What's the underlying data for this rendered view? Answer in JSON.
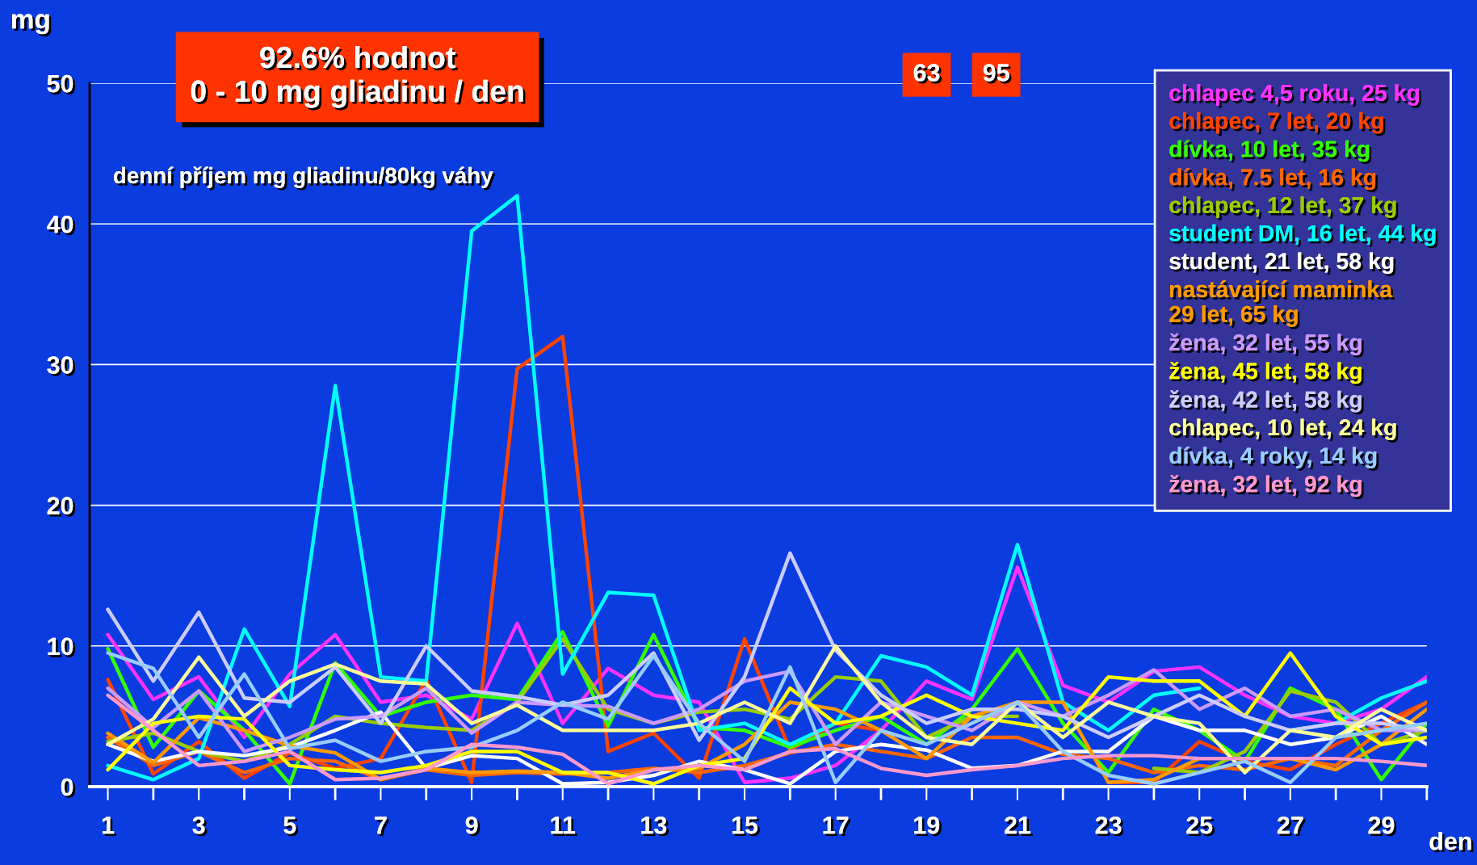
{
  "chart_data": {
    "type": "line",
    "title": "92.6% hodnot\n0 - 10 mg gliadinu / den",
    "subtitle": "denní příjem mg gliadinu/80kg váhy",
    "xlabel": "den",
    "ylabel": "mg",
    "x": [
      1,
      2,
      3,
      4,
      5,
      6,
      7,
      8,
      9,
      10,
      11,
      12,
      13,
      14,
      15,
      16,
      17,
      18,
      19,
      20,
      21,
      22,
      23,
      24,
      25,
      26,
      27,
      28,
      29,
      30
    ],
    "xlim": [
      0.6,
      30
    ],
    "ylim": [
      0,
      50
    ],
    "xticks": [
      1,
      3,
      5,
      7,
      9,
      11,
      13,
      15,
      17,
      19,
      21,
      23,
      25,
      27,
      29
    ],
    "yticks": [
      0,
      10,
      20,
      30,
      40,
      50
    ],
    "grid": "y",
    "legend": "top right",
    "annotations": [
      "63",
      "95"
    ],
    "series": [
      {
        "name": "chlapec 4,5 roku, 25 kg",
        "color": "#ff33ff",
        "values": [
          10.8,
          6.2,
          7.8,
          3.5,
          8.0,
          10.8,
          6.0,
          6.5,
          4.8,
          11.6,
          4.5,
          8.4,
          6.5,
          6.0,
          0.3,
          0.6,
          1.5,
          4.0,
          7.5,
          6.2,
          15.6,
          7.2,
          6.0,
          8.2,
          8.5,
          6.5,
          5.0,
          4.5,
          5.5,
          7.8
        ]
      },
      {
        "name": "chlapec, 7 let, 20 kg",
        "color": "#ff4400",
        "values": [
          7.6,
          0.9,
          3.2,
          0.6,
          2.4,
          1.3,
          2.0,
          7.6,
          0.3,
          29.7,
          32.0,
          2.5,
          3.8,
          0.6,
          10.5,
          2.6,
          4.5,
          4.0,
          null,
          null,
          null,
          null,
          0.3,
          0.3,
          3.2,
          1.8,
          1.2,
          3.0,
          4.5,
          6.0
        ]
      },
      {
        "name": "dívka, 10 let, 35 kg",
        "color": "#33ff00",
        "values": [
          9.8,
          2.8,
          6.8,
          4.0,
          0.2,
          8.8,
          5.0,
          6.0,
          6.5,
          6.2,
          11.0,
          4.3,
          10.8,
          4.2,
          4.0,
          2.8,
          4.0,
          5.0,
          3.0,
          5.5,
          9.8,
          4.5,
          1.0,
          5.5,
          4.0,
          1.8,
          7.0,
          5.5,
          0.5,
          4.5
        ]
      },
      {
        "name": "dívka, 7.5 let, 16 kg",
        "color": "#ff6600",
        "values": [
          3.5,
          1.5,
          2.5,
          1.0,
          2.0,
          1.8,
          0.5,
          1.2,
          0.8,
          1.0,
          0.9,
          1.0,
          1.3,
          1.0,
          1.5,
          2.4,
          3.0,
          2.5,
          2.0,
          3.5,
          3.5,
          2.3,
          2.0,
          1.0,
          1.5,
          1.2,
          2.0,
          1.5,
          4.0,
          6.0
        ]
      },
      {
        "name": "chlapec, 12 let, 37 kg",
        "color": "#99cc00",
        "values": [
          3.2,
          3.8,
          2.5,
          1.8,
          3.0,
          5.0,
          4.5,
          4.2,
          4.0,
          6.0,
          10.5,
          5.5,
          4.5,
          5.3,
          5.5,
          4.8,
          7.8,
          7.5,
          3.5,
          5.0,
          5.0,
          null,
          null,
          1.3,
          1.0,
          2.5,
          6.8,
          6.0,
          3.0,
          4.0
        ]
      },
      {
        "name": "student DM, 16 let, 44 kg",
        "color": "#00ffff",
        "values": [
          1.5,
          0.5,
          2.0,
          11.2,
          5.7,
          28.5,
          7.8,
          7.5,
          39.5,
          42.0,
          8.0,
          13.8,
          13.6,
          4.0,
          4.5,
          3.0,
          4.5,
          9.3,
          8.5,
          6.5,
          17.2,
          6.0,
          4.0,
          6.5,
          7.0,
          null,
          4.0,
          4.5,
          6.3,
          7.5
        ]
      },
      {
        "name": "student, 21 let, 58 kg",
        "color": "#ffffff",
        "values": [
          3.0,
          1.8,
          2.5,
          2.2,
          2.8,
          4.0,
          5.3,
          1.3,
          2.2,
          2.0,
          0.2,
          0.3,
          0.8,
          1.8,
          1.2,
          0.2,
          2.5,
          3.0,
          2.6,
          1.3,
          1.5,
          2.5,
          2.5,
          5.0,
          4.0,
          4.0,
          3.0,
          3.5,
          5.0,
          3.0
        ]
      },
      {
        "name": "nastávající maminka\n29 let, 65 kg",
        "color": "#ff9900",
        "values": [
          3.8,
          1.7,
          4.9,
          4.0,
          2.9,
          2.4,
          0.5,
          1.3,
          1.0,
          1.1,
          1.0,
          0.6,
          1.2,
          1.3,
          3.0,
          6.0,
          5.5,
          4.0,
          2.0,
          5.0,
          6.0,
          6.0,
          0.3,
          0.5,
          2.0,
          2.0,
          2.0,
          1.2,
          3.0,
          5.5
        ]
      },
      {
        "name": "žena, 32 let, 55 kg",
        "color": "#cc99ff",
        "values": [
          7.0,
          4.2,
          6.8,
          2.5,
          3.5,
          4.8,
          5.0,
          7.0,
          3.8,
          6.0,
          5.8,
          5.7,
          4.5,
          5.5,
          7.5,
          8.2,
          3.0,
          6.0,
          5.0,
          4.0,
          6.0,
          5.0,
          6.5,
          8.3,
          5.5,
          7.0,
          5.0,
          5.5,
          4.0,
          4.0
        ]
      },
      {
        "name": "žena, 45 let, 58 kg",
        "color": "#ffff00",
        "values": [
          1.2,
          4.5,
          5.0,
          4.8,
          1.5,
          1.2,
          1.0,
          1.5,
          2.5,
          2.5,
          1.0,
          1.0,
          0.2,
          1.5,
          2.0,
          7.0,
          4.5,
          5.0,
          6.5,
          5.0,
          4.5,
          4.0,
          7.8,
          7.5,
          7.5,
          5.0,
          9.5,
          5.0,
          3.0,
          3.5
        ]
      },
      {
        "name": "žena, 42 let, 58 kg",
        "color": "#ccccff",
        "values": [
          12.6,
          7.5,
          12.4,
          6.3,
          6.0,
          8.5,
          4.5,
          10.0,
          6.8,
          6.4,
          5.8,
          6.5,
          9.5,
          3.3,
          7.8,
          16.6,
          9.7,
          6.5,
          4.5,
          5.5,
          5.5,
          5.0,
          3.5,
          5.0,
          6.5,
          5.0,
          4.0,
          4.5,
          4.5,
          4.0
        ]
      },
      {
        "name": "chlapec, 10 let, 24 kg",
        "color": "#ffff99",
        "values": [
          3.0,
          4.8,
          9.2,
          5.0,
          7.5,
          8.7,
          7.5,
          7.3,
          4.5,
          5.8,
          4.0,
          4.0,
          4.0,
          4.5,
          6.0,
          4.5,
          10.0,
          6.0,
          3.5,
          3.0,
          6.0,
          3.5,
          6.0,
          5.0,
          4.5,
          1.0,
          4.0,
          3.5,
          5.5,
          4.0
        ]
      },
      {
        "name": "dívka, 4 roky, 14 kg",
        "color": "#99ccff",
        "values": [
          9.5,
          8.4,
          3.5,
          8.0,
          2.7,
          3.3,
          1.8,
          2.5,
          2.8,
          4.0,
          6.0,
          4.8,
          9.3,
          4.5,
          1.8,
          8.5,
          0.3,
          4.0,
          3.0,
          4.5,
          6.0,
          2.5,
          0.8,
          0.2,
          1.0,
          1.8,
          0.3,
          3.5,
          4.0,
          4.5
        ]
      },
      {
        "name": "žena, 32 let, 92 kg",
        "color": "#ff99cc",
        "values": [
          6.5,
          4.0,
          1.5,
          1.8,
          2.5,
          0.5,
          0.6,
          1.2,
          3.0,
          2.8,
          2.3,
          0.2,
          1.2,
          1.5,
          1.2,
          2.5,
          2.7,
          1.3,
          0.8,
          1.2,
          1.5,
          2.0,
          2.2,
          2.2,
          2.0,
          2.0,
          2.0,
          2.0,
          1.8,
          1.5
        ]
      }
    ]
  }
}
